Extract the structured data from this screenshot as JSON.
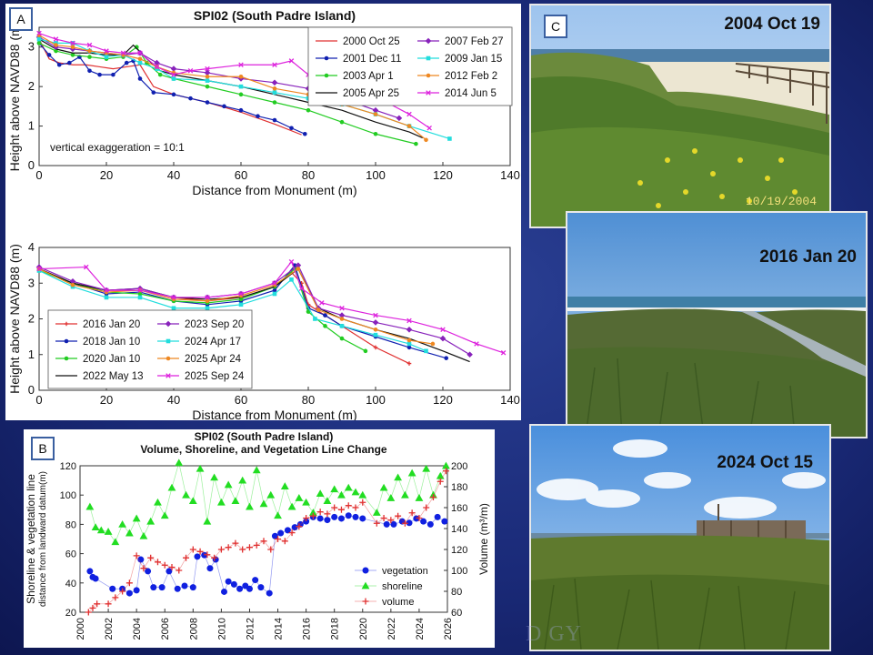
{
  "panels": {
    "a": "A",
    "b": "B",
    "c": "C"
  },
  "watermark": "D GY",
  "photos": [
    {
      "caption": "2004 Oct 19",
      "stamp": "10/19/2004"
    },
    {
      "caption": "2016 Jan 20"
    },
    {
      "caption": "2024 Oct 15"
    }
  ],
  "colors": {
    "background": "#1a2a78",
    "vegetation": "#1020e0",
    "shoreline": "#22dd22",
    "volume": "#e03030"
  },
  "chart_data": [
    {
      "type": "line",
      "title": "SPI02 (South Padre Island)",
      "xlabel": "Distance from Monument (m)",
      "ylabel": "Height above NAVD88 (m)",
      "xlim": [
        0,
        140
      ],
      "ylim": [
        0,
        3.5
      ],
      "xticks": [
        0,
        20,
        40,
        60,
        80,
        100,
        120,
        140
      ],
      "yticks": [
        0,
        1,
        2,
        3
      ],
      "annotation": "vertical exaggeration = 10:1",
      "legend": "top-right",
      "series": [
        {
          "name": "2000 Oct 25",
          "color": "#e03030",
          "marker": "none",
          "x": [
            0,
            3,
            6,
            10,
            14,
            18,
            22,
            26,
            30,
            34,
            40,
            50,
            60,
            70,
            78
          ],
          "y": [
            3.2,
            2.7,
            2.6,
            2.55,
            2.55,
            2.5,
            2.45,
            2.5,
            2.55,
            2.0,
            1.8,
            1.6,
            1.35,
            1.05,
            0.78
          ]
        },
        {
          "name": "2001 Dec 11",
          "color": "#1020b0",
          "marker": "circle",
          "x": [
            0,
            3,
            6,
            9,
            12,
            15,
            18,
            22,
            26,
            28,
            30,
            34,
            40,
            45,
            50,
            55,
            60,
            65,
            70,
            75,
            79
          ],
          "y": [
            3.1,
            2.8,
            2.55,
            2.6,
            2.75,
            2.4,
            2.3,
            2.3,
            2.6,
            2.65,
            2.2,
            1.85,
            1.8,
            1.7,
            1.6,
            1.5,
            1.4,
            1.25,
            1.15,
            0.95,
            0.8
          ]
        },
        {
          "name": "2003 Apr 1",
          "color": "#22cc22",
          "marker": "circle",
          "x": [
            0,
            5,
            10,
            15,
            20,
            25,
            29,
            32,
            36,
            40,
            50,
            60,
            70,
            80,
            90,
            100,
            112
          ],
          "y": [
            3.1,
            2.9,
            2.8,
            2.75,
            2.7,
            2.75,
            3.0,
            2.6,
            2.3,
            2.2,
            2.0,
            1.8,
            1.6,
            1.4,
            1.1,
            0.8,
            0.55
          ]
        },
        {
          "name": "2005 Apr 25",
          "color": "#111111",
          "marker": "none",
          "x": [
            0,
            5,
            10,
            15,
            20,
            25,
            28,
            32,
            36,
            40,
            50,
            60,
            70,
            80,
            90,
            100,
            110,
            114
          ],
          "y": [
            3.2,
            2.95,
            2.85,
            2.85,
            2.8,
            2.8,
            3.05,
            2.7,
            2.4,
            2.3,
            2.15,
            2.0,
            1.8,
            1.6,
            1.4,
            1.1,
            0.85,
            0.7
          ]
        },
        {
          "name": "2007 Feb 27",
          "color": "#8822bb",
          "marker": "diamond",
          "x": [
            0,
            5,
            10,
            15,
            20,
            25,
            30,
            35,
            40,
            50,
            60,
            70,
            80,
            90,
            100,
            107
          ],
          "y": [
            3.25,
            3.0,
            2.95,
            2.9,
            2.85,
            2.8,
            2.85,
            2.6,
            2.45,
            2.35,
            2.2,
            2.1,
            1.95,
            1.7,
            1.4,
            1.2
          ]
        },
        {
          "name": "2009 Jan 15",
          "color": "#22dddd",
          "marker": "square",
          "x": [
            0,
            5,
            10,
            15,
            20,
            25,
            30,
            35,
            40,
            50,
            60,
            70,
            80,
            90,
            100,
            110,
            122
          ],
          "y": [
            3.2,
            3.1,
            3.1,
            2.9,
            2.75,
            2.8,
            2.6,
            2.45,
            2.2,
            2.15,
            2.0,
            1.85,
            1.7,
            1.55,
            1.3,
            1.0,
            0.68
          ]
        },
        {
          "name": "2012 Feb 2",
          "color": "#ee8822",
          "marker": "circle",
          "x": [
            0,
            5,
            10,
            15,
            20,
            25,
            30,
            35,
            40,
            50,
            60,
            70,
            80,
            90,
            100,
            110,
            115
          ],
          "y": [
            3.3,
            3.05,
            3.0,
            2.9,
            2.85,
            2.8,
            2.7,
            2.5,
            2.35,
            2.25,
            2.25,
            1.95,
            1.8,
            1.55,
            1.3,
            1.0,
            0.65
          ]
        },
        {
          "name": "2014 Jun 5",
          "color": "#dd22dd",
          "marker": "x",
          "x": [
            0,
            5,
            10,
            15,
            20,
            25,
            30,
            35,
            40,
            45,
            50,
            60,
            70,
            75,
            80,
            90,
            100,
            110,
            116
          ],
          "y": [
            3.35,
            3.2,
            3.1,
            3.05,
            2.9,
            2.85,
            2.85,
            2.5,
            2.3,
            2.4,
            2.45,
            2.55,
            2.55,
            2.65,
            2.3,
            2.05,
            1.75,
            1.3,
            0.95
          ]
        }
      ]
    },
    {
      "type": "line",
      "xlabel": "Distance from Monument (m)",
      "ylabel": "Height above NAVD88 (m)",
      "xlim": [
        0,
        140
      ],
      "ylim": [
        0,
        4
      ],
      "xticks": [
        0,
        20,
        40,
        60,
        80,
        100,
        120,
        140
      ],
      "yticks": [
        0,
        1,
        2,
        3,
        4
      ],
      "legend": "bottom-left",
      "series": [
        {
          "name": "2016 Jan 20",
          "color": "#e03030",
          "marker": "plus",
          "x": [
            0,
            10,
            20,
            30,
            40,
            50,
            60,
            70,
            75,
            78,
            80,
            85,
            90,
            100,
            110
          ],
          "y": [
            3.4,
            3.0,
            2.8,
            2.8,
            2.6,
            2.5,
            2.6,
            2.9,
            3.3,
            3.0,
            2.4,
            2.1,
            1.8,
            1.2,
            0.75
          ]
        },
        {
          "name": "2018 Jan 10",
          "color": "#1020b0",
          "marker": "circle",
          "x": [
            0,
            10,
            20,
            30,
            40,
            50,
            60,
            70,
            76,
            80,
            85,
            90,
            100,
            110,
            121
          ],
          "y": [
            3.4,
            3.0,
            2.7,
            2.75,
            2.5,
            2.4,
            2.5,
            2.8,
            3.5,
            2.3,
            2.1,
            1.8,
            1.5,
            1.2,
            0.9
          ]
        },
        {
          "name": "2020 Jan 10",
          "color": "#22cc22",
          "marker": "circle",
          "x": [
            0,
            10,
            20,
            30,
            40,
            50,
            60,
            70,
            76,
            80,
            85,
            90,
            97
          ],
          "y": [
            3.35,
            3.0,
            2.75,
            2.7,
            2.5,
            2.45,
            2.55,
            2.9,
            3.4,
            2.2,
            1.8,
            1.45,
            1.1
          ]
        },
        {
          "name": "2022 May 13",
          "color": "#111111",
          "marker": "none",
          "x": [
            0,
            10,
            20,
            30,
            40,
            50,
            60,
            70,
            77,
            83,
            90,
            100,
            110,
            120,
            128
          ],
          "y": [
            3.4,
            3.0,
            2.8,
            2.85,
            2.6,
            2.55,
            2.6,
            2.9,
            3.4,
            2.3,
            2.0,
            1.7,
            1.45,
            1.1,
            0.8
          ]
        },
        {
          "name": "2023 Sep 20",
          "color": "#8822bb",
          "marker": "diamond",
          "x": [
            0,
            10,
            20,
            30,
            40,
            50,
            60,
            70,
            77,
            83,
            90,
            100,
            110,
            120,
            128
          ],
          "y": [
            3.45,
            3.05,
            2.8,
            2.85,
            2.6,
            2.6,
            2.7,
            3.0,
            3.5,
            2.3,
            2.1,
            1.9,
            1.7,
            1.45,
            1.0
          ]
        },
        {
          "name": "2024 Apr 17",
          "color": "#22dddd",
          "marker": "square",
          "x": [
            0,
            10,
            20,
            30,
            40,
            50,
            60,
            70,
            75,
            82,
            90,
            100,
            110,
            115
          ],
          "y": [
            3.35,
            2.9,
            2.6,
            2.6,
            2.3,
            2.3,
            2.4,
            2.7,
            3.1,
            2.0,
            1.8,
            1.55,
            1.3,
            1.1
          ]
        },
        {
          "name": "2025 Apr 24",
          "color": "#ee8822",
          "marker": "circle",
          "x": [
            0,
            10,
            20,
            30,
            40,
            50,
            60,
            70,
            77,
            83,
            90,
            100,
            110,
            117
          ],
          "y": [
            3.4,
            2.95,
            2.75,
            2.8,
            2.55,
            2.5,
            2.65,
            2.95,
            3.4,
            2.25,
            2.0,
            1.7,
            1.4,
            1.3
          ]
        },
        {
          "name": "2025 Sep 24",
          "color": "#dd22dd",
          "marker": "x",
          "x": [
            0,
            14,
            20,
            30,
            40,
            50,
            60,
            70,
            75,
            78,
            84,
            90,
            100,
            110,
            120,
            130,
            138
          ],
          "y": [
            3.4,
            3.45,
            2.8,
            2.8,
            2.6,
            2.6,
            2.7,
            3.0,
            3.6,
            2.85,
            2.45,
            2.3,
            2.1,
            1.95,
            1.7,
            1.3,
            1.05
          ]
        }
      ]
    },
    {
      "type": "scatter",
      "title": "SPI02 (South Padre Island)",
      "subtitle": "Volume, Shoreline, and Vegetation Line Change",
      "ylabel": "Shoreline & vegetation line",
      "ylabel2": "distance from landward datum(m)",
      "y2label": "Volume (m³/m)",
      "xlim": [
        2000,
        2026
      ],
      "ylim": [
        20,
        120
      ],
      "y2lim": [
        60,
        200
      ],
      "xticks": [
        2000,
        2002,
        2004,
        2006,
        2008,
        2010,
        2012,
        2014,
        2016,
        2018,
        2020,
        2022,
        2024,
        2026
      ],
      "yticks": [
        20,
        40,
        60,
        80,
        100,
        120
      ],
      "y2ticks": [
        60,
        80,
        100,
        120,
        140,
        160,
        180,
        200
      ],
      "legend": "bottom-right",
      "series": [
        {
          "name": "vegetation",
          "axis": "left",
          "color": "#1020e0",
          "marker": "circle",
          "x": [
            2000.7,
            2000.9,
            2001.1,
            2002.3,
            2003.0,
            2003.5,
            2004.0,
            2004.3,
            2004.8,
            2005.2,
            2005.8,
            2006.3,
            2006.9,
            2007.4,
            2008.0,
            2008.3,
            2008.8,
            2009.2,
            2009.6,
            2010.2,
            2010.5,
            2010.9,
            2011.3,
            2011.7,
            2012.0,
            2012.4,
            2012.8,
            2013.4,
            2013.8,
            2014.2,
            2014.7,
            2015.2,
            2015.6,
            2016.0,
            2016.5,
            2017.0,
            2017.5,
            2018.0,
            2018.5,
            2019.0,
            2019.5,
            2020.0,
            2021.7,
            2022.2,
            2022.8,
            2023.3,
            2023.8,
            2024.3,
            2024.8,
            2025.3,
            2025.8
          ],
          "y": [
            48,
            44,
            43,
            36,
            36,
            33,
            35,
            56,
            48,
            37,
            37,
            48,
            36,
            38,
            37,
            58,
            59,
            50,
            56,
            34,
            41,
            39,
            36,
            38,
            36,
            42,
            37,
            33,
            72,
            74,
            76,
            78,
            80,
            82,
            85,
            84,
            83,
            85,
            84,
            86,
            85,
            84,
            80,
            80,
            82,
            81,
            84,
            82,
            80,
            85,
            82
          ]
        },
        {
          "name": "shoreline",
          "axis": "left",
          "color": "#22dd22",
          "marker": "triangle",
          "x": [
            2000.7,
            2001.1,
            2001.5,
            2002.0,
            2002.5,
            2003.0,
            2003.5,
            2004.0,
            2004.5,
            2005.0,
            2005.5,
            2006.0,
            2006.5,
            2007.0,
            2007.5,
            2008.0,
            2008.5,
            2009.0,
            2009.5,
            2010.0,
            2010.5,
            2011.0,
            2011.5,
            2012.0,
            2012.5,
            2013.0,
            2013.5,
            2014.0,
            2014.5,
            2015.0,
            2015.5,
            2016.0,
            2016.5,
            2017.0,
            2017.5,
            2018.0,
            2018.5,
            2019.0,
            2019.5,
            2020.0,
            2021.0,
            2021.5,
            2022.0,
            2022.5,
            2023.0,
            2023.5,
            2024.0,
            2024.5,
            2025.0,
            2025.5,
            2025.9
          ],
          "y": [
            92,
            78,
            76,
            75,
            68,
            80,
            74,
            84,
            72,
            82,
            95,
            86,
            105,
            122,
            100,
            96,
            118,
            82,
            112,
            95,
            107,
            96,
            110,
            92,
            117,
            94,
            100,
            86,
            106,
            92,
            98,
            95,
            88,
            101,
            96,
            104,
            100,
            105,
            102,
            100,
            88,
            105,
            98,
            112,
            100,
            115,
            98,
            118,
            100,
            113,
            120
          ]
        },
        {
          "name": "volume",
          "axis": "right",
          "color": "#e03030",
          "marker": "plus",
          "x": [
            2000.6,
            2000.9,
            2001.2,
            2002.0,
            2002.5,
            2003.0,
            2003.5,
            2004.0,
            2004.5,
            2005.0,
            2005.5,
            2006.0,
            2006.5,
            2007.0,
            2007.5,
            2008.0,
            2008.5,
            2009.0,
            2009.5,
            2010.0,
            2010.5,
            2011.0,
            2011.5,
            2012.0,
            2012.5,
            2013.0,
            2013.5,
            2014.0,
            2014.5,
            2015.0,
            2015.5,
            2016.0,
            2016.5,
            2017.0,
            2017.5,
            2018.0,
            2018.5,
            2019.0,
            2019.5,
            2020.0,
            2021.0,
            2021.5,
            2022.0,
            2022.5,
            2023.0,
            2023.5,
            2024.0,
            2024.5,
            2025.0,
            2025.5,
            2025.9
          ],
          "y": [
            60,
            64,
            68,
            68,
            74,
            80,
            88,
            114,
            102,
            112,
            108,
            105,
            103,
            100,
            112,
            120,
            118,
            115,
            112,
            120,
            122,
            126,
            120,
            122,
            124,
            128,
            120,
            130,
            128,
            136,
            142,
            150,
            152,
            156,
            154,
            160,
            158,
            162,
            160,
            165,
            145,
            150,
            148,
            152,
            145,
            155,
            150,
            160,
            170,
            185,
            195
          ]
        }
      ]
    }
  ]
}
